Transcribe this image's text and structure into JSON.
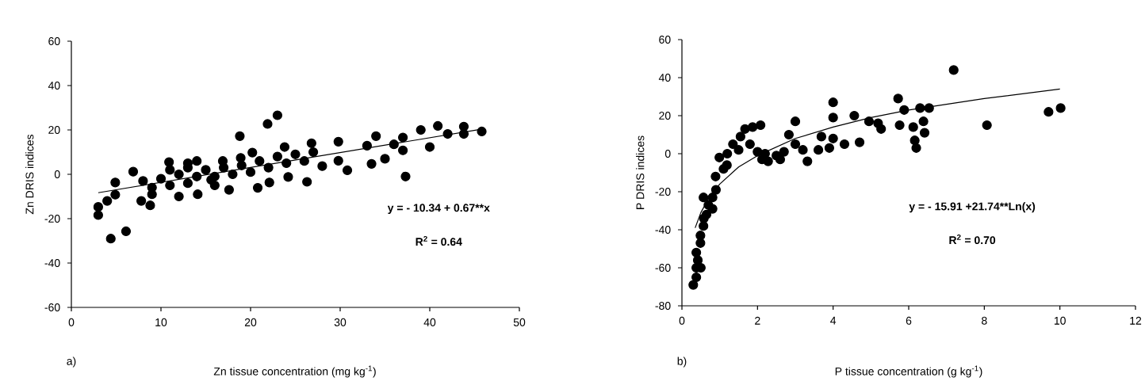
{
  "chart_data": [
    {
      "type": "scatter",
      "xlabel": "Zn tissue concentration (mg kg$^{-1}$)",
      "ylabel": "Zn DRIS indices",
      "xlim": [
        0,
        50
      ],
      "ylim": [
        -60,
        60
      ],
      "xticks": [
        0,
        10,
        20,
        30,
        40,
        50
      ],
      "yticks": [
        -60,
        -40,
        -20,
        0,
        20,
        40,
        60
      ],
      "series": [
        {
          "type": "scatter",
          "color": "#000000",
          "marker": "circle",
          "x": [
            3,
            3,
            4,
            4.4,
            6.1,
            4.9,
            4.9,
            6.9,
            7.8,
            8.8,
            9,
            10.9,
            12,
            13,
            14,
            14.1,
            15.6,
            16.9,
            17.6,
            18.8,
            18.9,
            20.2,
            20.8,
            21.9,
            23,
            22.1,
            23.8,
            24.2,
            26.3,
            26.8,
            28,
            29.8,
            29.8,
            30.8,
            33,
            33.5,
            34,
            35,
            36,
            37,
            37.3,
            37,
            39,
            40,
            40.9,
            42,
            43.8,
            43.8,
            45.8,
            8,
            9,
            10,
            11,
            12,
            13,
            14,
            15,
            16,
            17,
            18,
            19,
            20,
            21,
            22,
            23,
            24,
            25,
            26,
            27,
            11,
            13,
            16
          ],
          "values": [
            -14.7,
            -18.4,
            -12,
            -29,
            -25.7,
            -3.7,
            -9.2,
            1.2,
            -12,
            -14,
            -9,
            5.5,
            -10,
            5,
            6,
            -9,
            -2.5,
            6,
            -7,
            17.2,
            7.4,
            9.8,
            -6.1,
            22.7,
            26.6,
            -3.7,
            12.3,
            -1.2,
            -3.4,
            14,
            3.7,
            14.7,
            6.1,
            1.8,
            12.9,
            4.7,
            17.2,
            7,
            13.5,
            10.8,
            -1,
            16.6,
            20,
            12.3,
            21.8,
            18.2,
            21.5,
            18.2,
            19.3,
            -3,
            -6,
            -2,
            -5,
            0,
            -4,
            -1,
            2,
            -5,
            3,
            0,
            4,
            1,
            6,
            3,
            8,
            5,
            9,
            6,
            10,
            2,
            3,
            -1
          ]
        },
        {
          "type": "line",
          "color": "#000000",
          "marker": "none",
          "x": [
            3,
            46
          ],
          "values": [
            -8.3,
            20.5
          ]
        }
      ],
      "annotations": [
        "y = - 10.34 + 0.67**x",
        "R$^{2}$ = 0.64",
        "a)"
      ]
    },
    {
      "type": "scatter",
      "xlabel": "P tissue concentration (g kg$^{-1}$)",
      "ylabel": "P DRIS indices",
      "xlim": [
        0,
        12
      ],
      "ylim": [
        -80,
        60
      ],
      "xticks": [
        0,
        2,
        4,
        6,
        8,
        10,
        12
      ],
      "yticks": [
        -80,
        -60,
        -40,
        -20,
        0,
        20,
        40,
        60
      ],
      "series": [
        {
          "type": "scatter",
          "color": "#000000",
          "marker": "circle",
          "x": [
            0.3,
            0.38,
            0.38,
            0.5,
            0.38,
            0.42,
            0.49,
            0.49,
            0.57,
            0.58,
            0.57,
            0.81,
            0.81,
            0.89,
            0.9,
            0.99,
            1.19,
            1.35,
            1.55,
            1.67,
            1.87,
            2.08,
            2.12,
            2.28,
            2.6,
            2.83,
            3,
            3,
            3.32,
            3.61,
            3.69,
            3.9,
            4,
            4,
            4,
            4.3,
            4.56,
            4.7,
            4.95,
            5.19,
            5.27,
            5.72,
            5.76,
            5.88,
            6.12,
            6.16,
            6.2,
            6.39,
            6.42,
            6.3,
            6.54,
            7.19,
            8.07,
            9.7,
            10.02,
            1.2,
            1.5,
            1.8,
            2,
            2.2,
            2.5,
            2.7,
            3.2,
            1.1,
            0.7,
            0.65
          ],
          "values": [
            -69,
            -65,
            -60,
            -60,
            -52,
            -56,
            -47,
            -43,
            -38,
            -34,
            -23,
            -29,
            -23,
            -12,
            -19,
            -2,
            -6,
            5,
            9,
            13,
            14,
            15,
            -3,
            -4,
            -3,
            10,
            17,
            5,
            -4,
            2,
            9,
            3,
            27,
            19,
            8,
            5,
            20,
            6,
            17,
            16,
            13,
            29,
            15,
            23,
            14,
            7,
            3,
            17,
            11,
            24,
            24,
            44,
            15,
            22,
            24,
            0,
            2,
            5,
            1,
            0,
            -1,
            1,
            2,
            -8,
            -27,
            -32
          ]
        },
        {
          "type": "line",
          "color": "#000000",
          "marker": "none",
          "x": [
            0.35,
            0.5,
            0.75,
            1,
            1.5,
            2,
            3,
            4,
            5,
            6,
            8,
            10
          ],
          "values": [
            -39,
            -31,
            -22,
            -16,
            -7,
            -1,
            8,
            14,
            19,
            23,
            29,
            34
          ]
        }
      ],
      "annotations": [
        "y = - 15.91 +21.74**Ln(x)",
        "R$^{2}$ = 0.70",
        "b)"
      ]
    }
  ]
}
